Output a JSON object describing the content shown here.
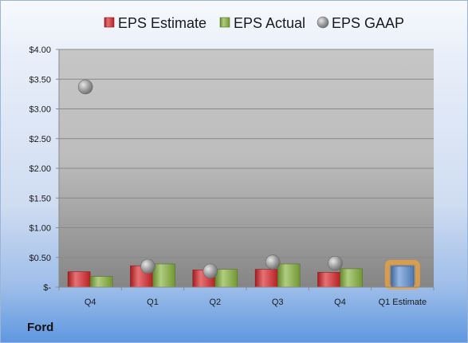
{
  "company": "Ford",
  "chart_data": {
    "type": "bar",
    "categories": [
      "Q4",
      "Q1",
      "Q2",
      "Q3",
      "Q4",
      "Q1 Estimate"
    ],
    "series": [
      {
        "name": "EPS Estimate",
        "kind": "bar",
        "color": "#d9262a",
        "values": [
          0.26,
          0.36,
          0.29,
          0.3,
          0.25,
          null
        ]
      },
      {
        "name": "EPS Actual",
        "kind": "bar",
        "color": "#86b23b",
        "values": [
          0.18,
          0.39,
          0.3,
          0.39,
          0.31,
          null
        ]
      },
      {
        "name": "EPS GAAP",
        "kind": "marker",
        "color": "#9a9a9a",
        "values": [
          3.37,
          0.35,
          0.27,
          0.42,
          0.4,
          null
        ]
      },
      {
        "name": "",
        "kind": "bar",
        "color": "#5d8fd3",
        "highlight": "#f2a23a",
        "values": [
          null,
          null,
          null,
          null,
          null,
          0.35
        ]
      }
    ],
    "ylim": [
      0,
      4
    ],
    "yticks": [
      0,
      0.5,
      1,
      1.5,
      2,
      2.5,
      3,
      3.5,
      4
    ],
    "ytick_labels": [
      "$-",
      "$0.50",
      "$1.00",
      "$1.50",
      "$2.00",
      "$2.50",
      "$3.00",
      "$3.50",
      "$4.00"
    ],
    "legend_position": "top",
    "grid": true,
    "xlabel": "",
    "ylabel": "",
    "title": ""
  }
}
